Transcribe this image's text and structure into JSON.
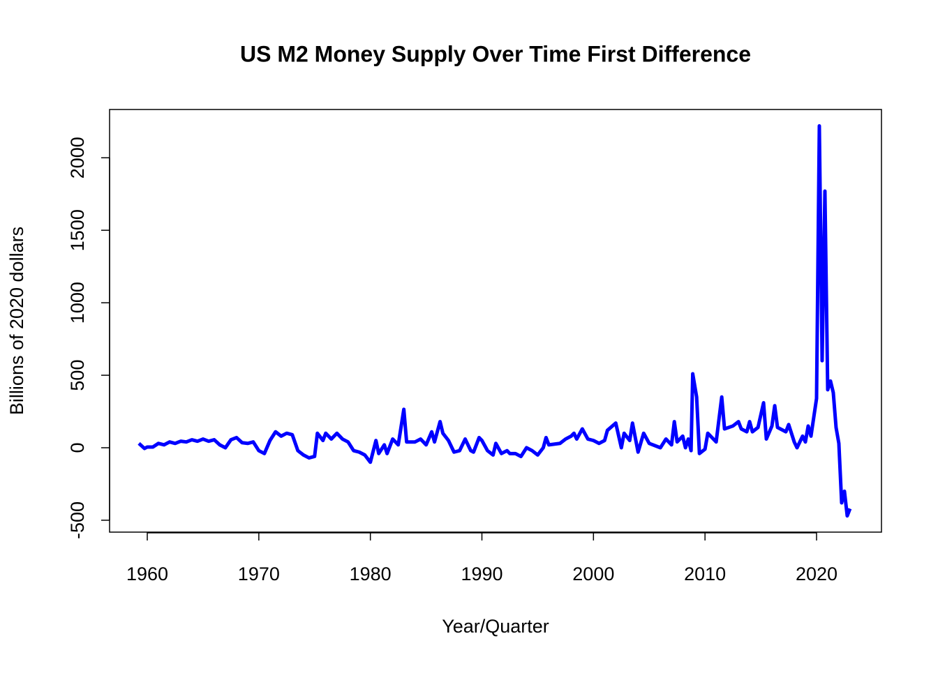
{
  "chart_data": {
    "type": "line",
    "title": "US M2 Money Supply Over Time First Difference",
    "x_label": "Year/Quarter",
    "y_label": "Billions of 2020 dollars",
    "xlim": [
      1956.62,
      2025.82
    ],
    "ylim": [
      -582,
      2333
    ],
    "xticks": [
      1960,
      1970,
      1980,
      1990,
      2000,
      2010,
      2020
    ],
    "yticks": [
      -500,
      0,
      500,
      1000,
      1500,
      2000
    ],
    "series": [
      {
        "color": "#0000ff",
        "x": [
          1959.25,
          1959.75,
          1960,
          1960.5,
          1961,
          1961.5,
          1962,
          1962.5,
          1963,
          1963.5,
          1964,
          1964.5,
          1965,
          1965.5,
          1966,
          1966.5,
          1967,
          1967.5,
          1968,
          1968.5,
          1969,
          1969.5,
          1970,
          1970.5,
          1971,
          1971.5,
          1972,
          1972.5,
          1973,
          1973.5,
          1974,
          1974.5,
          1975,
          1975.25,
          1975.75,
          1976,
          1976.5,
          1977,
          1977.5,
          1978,
          1978.5,
          1979,
          1979.5,
          1980,
          1980.5,
          1980.75,
          1981.25,
          1981.5,
          1982,
          1982.5,
          1983,
          1983.25,
          1984,
          1984.5,
          1985,
          1985.5,
          1985.75,
          1986.25,
          1986.5,
          1987,
          1987.5,
          1988,
          1988.5,
          1989,
          1989.25,
          1989.75,
          1990,
          1990.5,
          1991,
          1991.25,
          1991.75,
          1992.25,
          1992.5,
          1993,
          1993.5,
          1994,
          1994.5,
          1995,
          1995.5,
          1995.75,
          1996,
          1997,
          1997.5,
          1998,
          1998.25,
          1998.5,
          1999,
          1999.5,
          2000,
          2000.5,
          2001,
          2001.25,
          2002,
          2002.5,
          2002.75,
          2003.25,
          2003.5,
          2004,
          2004.5,
          2005,
          2006,
          2006.5,
          2007,
          2007.25,
          2007.5,
          2008,
          2008.25,
          2008.5,
          2008.75,
          2008.9,
          2009.25,
          2009.5,
          2010,
          2010.25,
          2011,
          2011.5,
          2011.75,
          2012.5,
          2013,
          2013.25,
          2013.75,
          2014,
          2014.25,
          2014.75,
          2015.25,
          2015.5,
          2016,
          2016.25,
          2016.5,
          2017.25,
          2017.5,
          2018,
          2018.25,
          2018.75,
          2019,
          2019.25,
          2019.5,
          2019.75,
          2020,
          2020.25,
          2020.5,
          2020.75,
          2021,
          2021.25,
          2021.5,
          2021.75,
          2022,
          2022.25,
          2022.5,
          2022.75,
          2023
        ],
        "values": [
          30,
          -5,
          5,
          5,
          30,
          20,
          40,
          30,
          45,
          40,
          55,
          45,
          60,
          45,
          55,
          20,
          0,
          55,
          70,
          35,
          30,
          40,
          -20,
          -40,
          50,
          110,
          80,
          100,
          90,
          -20,
          -50,
          -70,
          -60,
          100,
          50,
          100,
          60,
          100,
          60,
          40,
          -20,
          -30,
          -50,
          -100,
          50,
          -40,
          20,
          -40,
          60,
          20,
          265,
          40,
          40,
          60,
          20,
          110,
          40,
          180,
          100,
          50,
          -30,
          -20,
          60,
          -20,
          -30,
          70,
          50,
          -20,
          -50,
          30,
          -40,
          -20,
          -40,
          -40,
          -60,
          0,
          -20,
          -50,
          0,
          70,
          20,
          30,
          60,
          80,
          100,
          60,
          130,
          60,
          50,
          30,
          50,
          120,
          170,
          0,
          100,
          50,
          170,
          -30,
          100,
          30,
          0,
          60,
          20,
          180,
          40,
          80,
          0,
          60,
          -20,
          510,
          350,
          -40,
          -10,
          100,
          40,
          350,
          130,
          150,
          180,
          130,
          110,
          180,
          110,
          140,
          310,
          60,
          150,
          290,
          140,
          110,
          160,
          40,
          0,
          80,
          40,
          150,
          80,
          210,
          340,
          2220,
          600,
          1770,
          400,
          460,
          380,
          140,
          30,
          -380,
          -300,
          -470,
          -420
        ]
      }
    ]
  }
}
